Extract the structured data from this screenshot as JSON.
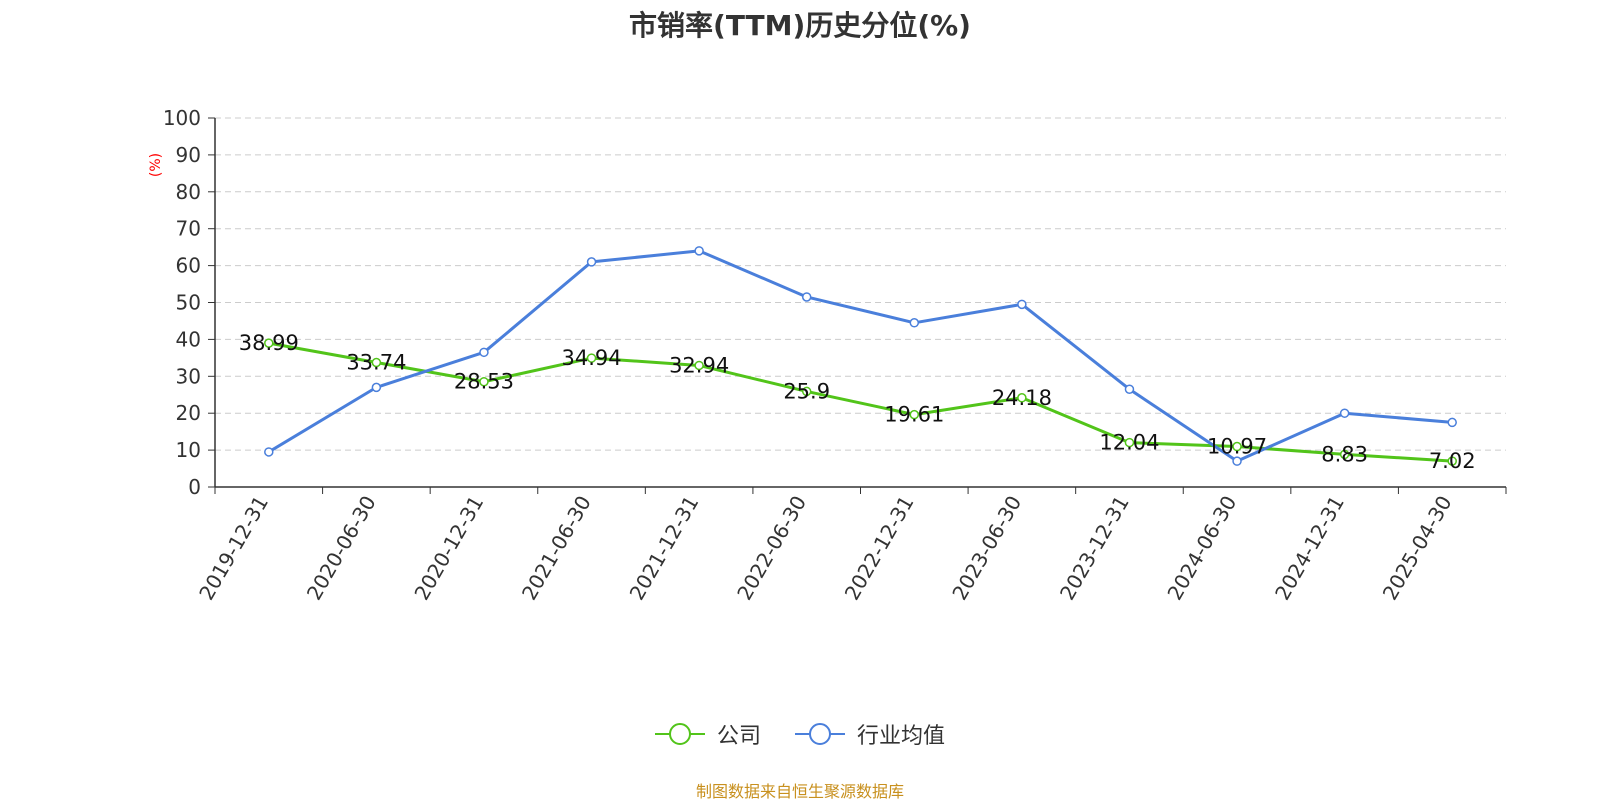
{
  "chart_data": {
    "type": "line",
    "title": "市销率(TTM)历史分位(%)",
    "ylabel": "(%)",
    "categories": [
      "2019-12-31",
      "2020-06-30",
      "2020-12-31",
      "2021-06-30",
      "2021-12-31",
      "2022-06-30",
      "2022-12-31",
      "2023-06-30",
      "2023-12-31",
      "2024-06-30",
      "2024-12-31",
      "2025-04-30"
    ],
    "ylim": [
      0,
      100
    ],
    "yticks": [
      0,
      10,
      20,
      30,
      40,
      50,
      60,
      70,
      80,
      90,
      100
    ],
    "grid": true,
    "legend_position": "bottom-center",
    "series": [
      {
        "name": "公司",
        "color": "#52c41a",
        "values": [
          38.99,
          33.74,
          28.53,
          34.94,
          32.94,
          25.9,
          19.61,
          24.18,
          12.04,
          10.97,
          8.83,
          7.02
        ],
        "labels": [
          "38.99",
          "33.74",
          "28.53",
          "34.94",
          "32.94",
          "25.9",
          "19.61",
          "24.18",
          "12.04",
          "10.97",
          "8.83",
          "7.02"
        ]
      },
      {
        "name": "行业均值",
        "color": "#4a7fdb",
        "values": [
          9.5,
          27,
          36.5,
          61,
          64,
          51.5,
          44.5,
          49.5,
          26.5,
          7,
          20,
          17.5
        ]
      }
    ]
  },
  "legend": {
    "items": [
      {
        "label": "公司",
        "color": "#52c41a"
      },
      {
        "label": "行业均值",
        "color": "#4a7fdb"
      }
    ]
  },
  "footer": {
    "source": "制图数据来自恒生聚源数据库"
  }
}
